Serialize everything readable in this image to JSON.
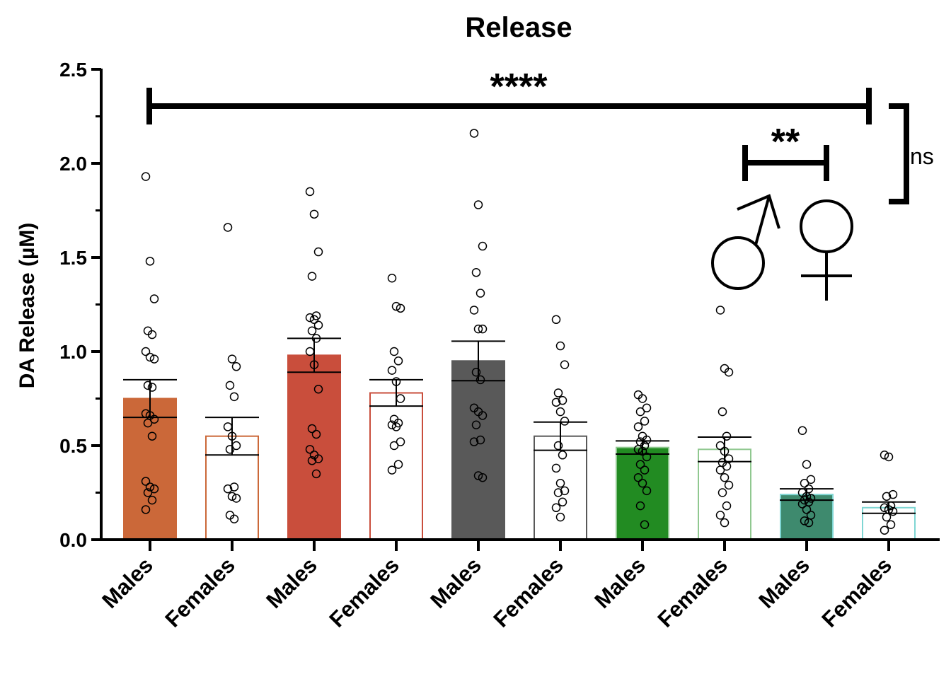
{
  "chart_data": {
    "type": "bar",
    "title": "Release",
    "ylabel": "DA Release (µM)",
    "xlabel": "",
    "ylim": [
      0,
      2.5
    ],
    "yticks": [
      "0.0",
      "0.5",
      "1.0",
      "1.5",
      "2.0",
      "2.5"
    ],
    "categories": [
      "Males",
      "Females",
      "Males",
      "Females",
      "Males",
      "Females",
      "Males",
      "Females",
      "Males",
      "Females"
    ],
    "values": [
      0.75,
      0.55,
      0.98,
      0.78,
      0.95,
      0.55,
      0.49,
      0.48,
      0.24,
      0.17
    ],
    "sem": [
      0.1,
      0.1,
      0.09,
      0.07,
      0.105,
      0.075,
      0.035,
      0.065,
      0.03,
      0.03
    ],
    "fill_colors": [
      "#cb6839",
      "#ffffff",
      "#c94e3c",
      "#ffffff",
      "#595959",
      "#ffffff",
      "#228b22",
      "#ffffff",
      "#3e8a6e",
      "#ffffff"
    ],
    "edge_colors": [
      "#cb6839",
      "#cb6839",
      "#c94e3c",
      "#c94e3c",
      "#595959",
      "#595959",
      "#90c890",
      "#90c890",
      "#7fd6d3",
      "#7fd6d3"
    ],
    "points": [
      [
        1.93,
        1.48,
        1.28,
        1.11,
        1.09,
        1.0,
        0.97,
        0.96,
        0.82,
        0.81,
        0.67,
        0.66,
        0.64,
        0.62,
        0.55,
        0.31,
        0.28,
        0.27,
        0.25,
        0.21,
        0.16
      ],
      [
        1.66,
        0.96,
        0.92,
        0.82,
        0.76,
        0.6,
        0.55,
        0.5,
        0.48,
        0.28,
        0.27,
        0.23,
        0.22,
        0.13,
        0.11
      ],
      [
        1.85,
        1.73,
        1.53,
        1.4,
        1.19,
        1.18,
        1.17,
        1.14,
        1.11,
        1.07,
        1.0,
        0.93,
        0.8,
        0.59,
        0.56,
        0.48,
        0.45,
        0.43,
        0.42,
        0.35
      ],
      [
        1.39,
        1.24,
        1.23,
        1.0,
        0.95,
        0.9,
        0.84,
        0.75,
        0.64,
        0.62,
        0.61,
        0.6,
        0.52,
        0.5,
        0.4,
        0.37
      ],
      [
        2.16,
        1.78,
        1.56,
        1.42,
        1.31,
        1.22,
        1.12,
        1.12,
        0.89,
        0.85,
        0.7,
        0.68,
        0.66,
        0.61,
        0.53,
        0.52,
        0.34,
        0.33
      ],
      [
        1.17,
        1.03,
        0.93,
        0.78,
        0.74,
        0.73,
        0.68,
        0.63,
        0.5,
        0.45,
        0.38,
        0.3,
        0.26,
        0.25,
        0.2,
        0.17,
        0.12
      ],
      [
        0.77,
        0.75,
        0.7,
        0.68,
        0.63,
        0.6,
        0.55,
        0.53,
        0.52,
        0.5,
        0.48,
        0.47,
        0.44,
        0.4,
        0.37,
        0.33,
        0.3,
        0.26,
        0.18,
        0.08
      ],
      [
        1.22,
        0.91,
        0.89,
        0.68,
        0.55,
        0.5,
        0.47,
        0.43,
        0.41,
        0.39,
        0.37,
        0.33,
        0.29,
        0.25,
        0.18,
        0.13,
        0.09
      ],
      [
        0.58,
        0.4,
        0.32,
        0.3,
        0.27,
        0.25,
        0.23,
        0.22,
        0.21,
        0.2,
        0.19,
        0.16,
        0.13,
        0.1,
        0.09
      ],
      [
        0.45,
        0.44,
        0.24,
        0.23,
        0.18,
        0.17,
        0.16,
        0.15,
        0.12,
        0.08,
        0.05
      ]
    ],
    "annotations": {
      "sig_all": "****",
      "sig_pair": "**",
      "sig_ns": "ns"
    },
    "grid": false,
    "legend": "none"
  }
}
